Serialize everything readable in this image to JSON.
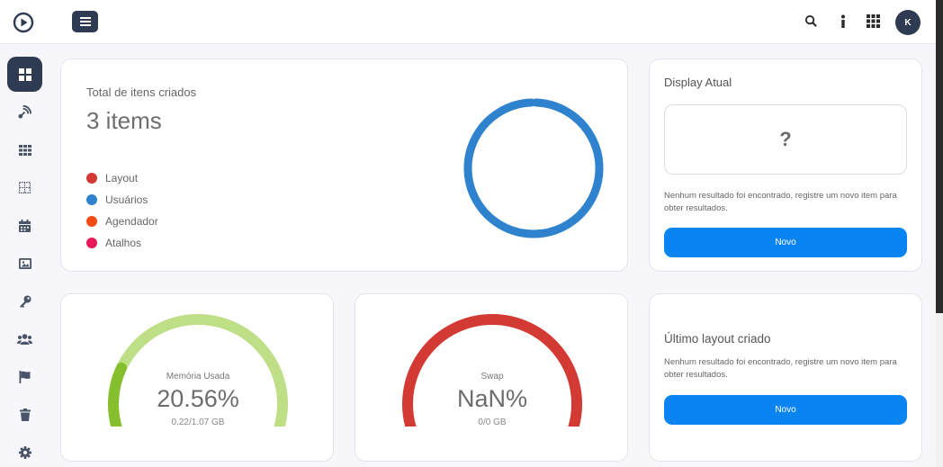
{
  "header": {
    "user_initial": "K",
    "icons": [
      "play-logo-icon",
      "hamburger-menu-icon",
      "search-icon",
      "info-icon",
      "apps-grid-icon"
    ]
  },
  "sidebar": {
    "items": [
      {
        "name": "dashboard",
        "icon": "dashboard-icon",
        "active": true
      },
      {
        "name": "broadcast",
        "icon": "satellite-icon"
      },
      {
        "name": "grid",
        "icon": "grid-icon"
      },
      {
        "name": "layout",
        "icon": "layout-icon"
      },
      {
        "name": "calendar",
        "icon": "calendar-icon"
      },
      {
        "name": "media",
        "icon": "image-icon"
      },
      {
        "name": "keys",
        "icon": "key-icon"
      },
      {
        "name": "users",
        "icon": "users-icon"
      },
      {
        "name": "flags",
        "icon": "flag-icon"
      },
      {
        "name": "trash",
        "icon": "trash-icon"
      },
      {
        "name": "settings",
        "icon": "gear-icon"
      }
    ]
  },
  "total": {
    "title": "Total de itens criados",
    "value": "3 items",
    "legend": [
      {
        "label": "Layout",
        "color": "#d23a33"
      },
      {
        "label": "Usuários",
        "color": "#2f82cd"
      },
      {
        "label": "Agendador",
        "color": "#f44a16"
      },
      {
        "label": "Atalhos",
        "color": "#e8185a"
      }
    ]
  },
  "chart_data": {
    "type": "pie",
    "labels": [
      "Layout",
      "Usuários",
      "Agendador",
      "Atalhos"
    ],
    "values": [
      0,
      3,
      0,
      0
    ],
    "colors": [
      "#d23a33",
      "#2f82cd",
      "#f44a16",
      "#e8185a"
    ]
  },
  "display": {
    "title": "Display Atual",
    "placeholder": "?",
    "empty_message": "Nenhum resultado foi encontrado, registre um novo item para obter resultados.",
    "button": "Novo"
  },
  "memory": {
    "label": "Memória Usada",
    "value": "20.56%",
    "detail": "0.22/1.07 GB",
    "percent": 20.56,
    "track_color": "#bfdf87",
    "fill_color": "#86bf2d"
  },
  "swap": {
    "label": "Swap",
    "value": "NaN%",
    "detail": "0/0 GB",
    "track_color": "#d23a33"
  },
  "last_layout": {
    "title": "Último layout criado",
    "empty_message": "Nenhum resultado foi encontrado, registre um novo item para obter resultados.",
    "button": "Novo"
  }
}
